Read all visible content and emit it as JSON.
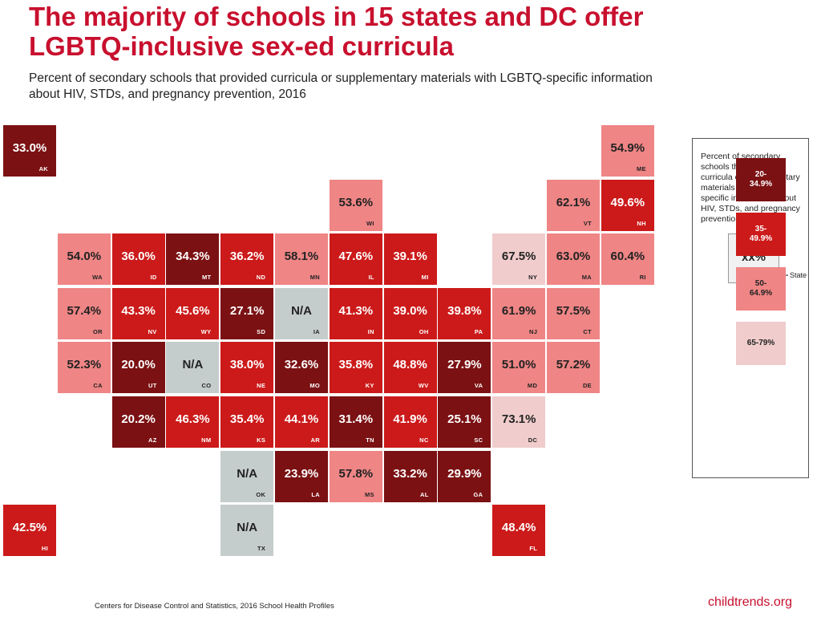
{
  "title": "The majority of schools in 15 states and DC offer LGBTQ-inclusive sex-ed curricula",
  "subtitle": "Percent of secondary schools that provided curricula or supplementary materials with LGBTQ-specific information about HIV, STDs, and pregnancy prevention, 2016",
  "colors": {
    "bin_20_34": "#7b1113",
    "bin_35_49": "#cc1a1a",
    "bin_50_64": "#ef8585",
    "bin_65_79": "#f0cccc",
    "na": "#c5cdcc",
    "title": "#c8102e"
  },
  "states": [
    {
      "abbr": "AK",
      "value": "33.0%",
      "bin": "20-34.9"
    },
    {
      "abbr": "ME",
      "value": "54.9%",
      "bin": "50-64.9"
    },
    {
      "abbr": "WI",
      "value": "53.6%",
      "bin": "50-64.9"
    },
    {
      "abbr": "VT",
      "value": "62.1%",
      "bin": "50-64.9"
    },
    {
      "abbr": "NH",
      "value": "49.6%",
      "bin": "35-49.9"
    },
    {
      "abbr": "WA",
      "value": "54.0%",
      "bin": "50-64.9"
    },
    {
      "abbr": "ID",
      "value": "36.0%",
      "bin": "35-49.9"
    },
    {
      "abbr": "MT",
      "value": "34.3%",
      "bin": "20-34.9"
    },
    {
      "abbr": "ND",
      "value": "36.2%",
      "bin": "35-49.9"
    },
    {
      "abbr": "MN",
      "value": "58.1%",
      "bin": "50-64.9"
    },
    {
      "abbr": "IL",
      "value": "47.6%",
      "bin": "35-49.9"
    },
    {
      "abbr": "MI",
      "value": "39.1%",
      "bin": "35-49.9"
    },
    {
      "abbr": "NY",
      "value": "67.5%",
      "bin": "65-79"
    },
    {
      "abbr": "MA",
      "value": "63.0%",
      "bin": "50-64.9"
    },
    {
      "abbr": "RI",
      "value": "60.4%",
      "bin": "50-64.9"
    },
    {
      "abbr": "OR",
      "value": "57.4%",
      "bin": "50-64.9"
    },
    {
      "abbr": "NV",
      "value": "43.3%",
      "bin": "35-49.9"
    },
    {
      "abbr": "WY",
      "value": "45.6%",
      "bin": "35-49.9"
    },
    {
      "abbr": "SD",
      "value": "27.1%",
      "bin": "20-34.9"
    },
    {
      "abbr": "IA",
      "value": "N/A",
      "bin": "na"
    },
    {
      "abbr": "IN",
      "value": "41.3%",
      "bin": "35-49.9"
    },
    {
      "abbr": "OH",
      "value": "39.0%",
      "bin": "35-49.9"
    },
    {
      "abbr": "PA",
      "value": "39.8%",
      "bin": "35-49.9"
    },
    {
      "abbr": "NJ",
      "value": "61.9%",
      "bin": "50-64.9"
    },
    {
      "abbr": "CT",
      "value": "57.5%",
      "bin": "50-64.9"
    },
    {
      "abbr": "CA",
      "value": "52.3%",
      "bin": "50-64.9"
    },
    {
      "abbr": "UT",
      "value": "20.0%",
      "bin": "20-34.9"
    },
    {
      "abbr": "CO",
      "value": "N/A",
      "bin": "na"
    },
    {
      "abbr": "NE",
      "value": "38.0%",
      "bin": "35-49.9"
    },
    {
      "abbr": "MO",
      "value": "32.6%",
      "bin": "20-34.9"
    },
    {
      "abbr": "KY",
      "value": "35.8%",
      "bin": "35-49.9"
    },
    {
      "abbr": "WV",
      "value": "48.8%",
      "bin": "35-49.9"
    },
    {
      "abbr": "VA",
      "value": "27.9%",
      "bin": "20-34.9"
    },
    {
      "abbr": "MD",
      "value": "51.0%",
      "bin": "50-64.9"
    },
    {
      "abbr": "DE",
      "value": "57.2%",
      "bin": "50-64.9"
    },
    {
      "abbr": "AZ",
      "value": "20.2%",
      "bin": "20-34.9"
    },
    {
      "abbr": "NM",
      "value": "46.3%",
      "bin": "35-49.9"
    },
    {
      "abbr": "KS",
      "value": "35.4%",
      "bin": "35-49.9"
    },
    {
      "abbr": "AR",
      "value": "44.1%",
      "bin": "35-49.9"
    },
    {
      "abbr": "TN",
      "value": "31.4%",
      "bin": "20-34.9"
    },
    {
      "abbr": "NC",
      "value": "41.9%",
      "bin": "35-49.9"
    },
    {
      "abbr": "SC",
      "value": "25.1%",
      "bin": "20-34.9"
    },
    {
      "abbr": "DC",
      "value": "73.1%",
      "bin": "65-79"
    },
    {
      "abbr": "OK",
      "value": "N/A",
      "bin": "na"
    },
    {
      "abbr": "LA",
      "value": "23.9%",
      "bin": "20-34.9"
    },
    {
      "abbr": "MS",
      "value": "57.8%",
      "bin": "50-64.9"
    },
    {
      "abbr": "AL",
      "value": "33.2%",
      "bin": "20-34.9"
    },
    {
      "abbr": "GA",
      "value": "29.9%",
      "bin": "20-34.9"
    },
    {
      "abbr": "HI",
      "value": "42.5%",
      "bin": "35-49.9"
    },
    {
      "abbr": "TX",
      "value": "N/A",
      "bin": "na"
    },
    {
      "abbr": "FL",
      "value": "48.4%",
      "bin": "35-49.9"
    }
  ],
  "legend": {
    "description": "Percent of secondary schools that provided curricula or supplementary materials with LGBTQ-specific information about HIV, STDs, and pregnancy prevention, 2016",
    "sample_value": "xx%",
    "sample_abbr": "XX",
    "state_label": "State",
    "bins": [
      {
        "key": "20-34.9",
        "label": "20-\n34.9%"
      },
      {
        "key": "35-49.9",
        "label": "35-\n49.9%"
      },
      {
        "key": "50-64.9",
        "label": "50-\n64.9%"
      },
      {
        "key": "65-79",
        "label": "65-79%"
      }
    ]
  },
  "source": "Centers for Disease Control and Statistics, 2016 School Health Profiles",
  "brand": "childtrends.org"
}
